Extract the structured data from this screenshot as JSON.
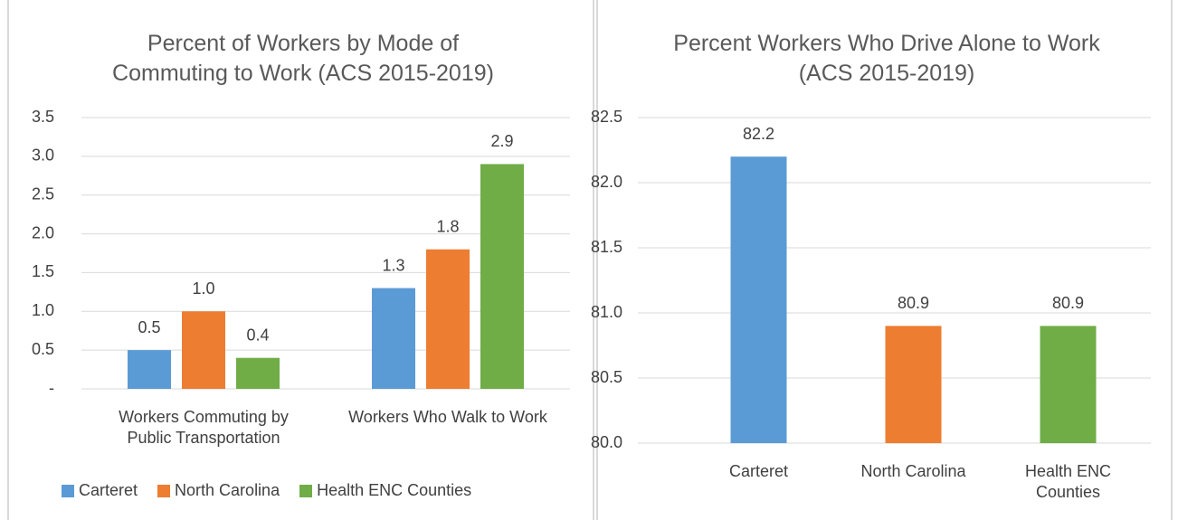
{
  "chart_data": [
    {
      "type": "bar",
      "title": "Percent of Workers by Mode of Commuting to Work (ACS 2015-2019)",
      "categories": [
        "Workers Commuting by Public Transportation",
        "Workers Who Walk to Work"
      ],
      "series": [
        {
          "name": "Carteret",
          "color": "#5b9bd5",
          "values": [
            0.5,
            1.3
          ],
          "value_labels": [
            "0.5",
            "1.3"
          ]
        },
        {
          "name": "North Carolina",
          "color": "#ed7d31",
          "values": [
            1.0,
            1.8
          ],
          "value_labels": [
            "1.0",
            "1.8"
          ]
        },
        {
          "name": "Health ENC Counties",
          "color": "#70ad47",
          "values": [
            0.4,
            2.9
          ],
          "value_labels": [
            "0.4",
            "2.9"
          ]
        }
      ],
      "ylim": [
        0,
        3.5
      ],
      "yticks": [
        {
          "value": 0,
          "label": "-"
        },
        0.5,
        {
          "value": 1,
          "label": "1.0"
        },
        1.5,
        {
          "value": 2,
          "label": "2.0"
        },
        2.5,
        {
          "value": 3,
          "label": "3.0"
        },
        3.5
      ],
      "grid": true,
      "legend": "bottom"
    },
    {
      "type": "bar",
      "title": "Percent Workers Who Drive Alone to Work (ACS 2015-2019)",
      "categories": [
        "Carteret",
        "North Carolina",
        "Health ENC Counties"
      ],
      "values": [
        82.2,
        80.9,
        80.9
      ],
      "colors": [
        "#5b9bd5",
        "#ed7d31",
        "#70ad47"
      ],
      "ylim": [
        80,
        82.5
      ],
      "yticks": [
        {
          "value": 80,
          "label": "80.0"
        },
        80.5,
        {
          "value": 81,
          "label": "81.0"
        },
        81.5,
        {
          "value": 82,
          "label": "82.0"
        },
        82.5
      ],
      "grid": true
    }
  ]
}
